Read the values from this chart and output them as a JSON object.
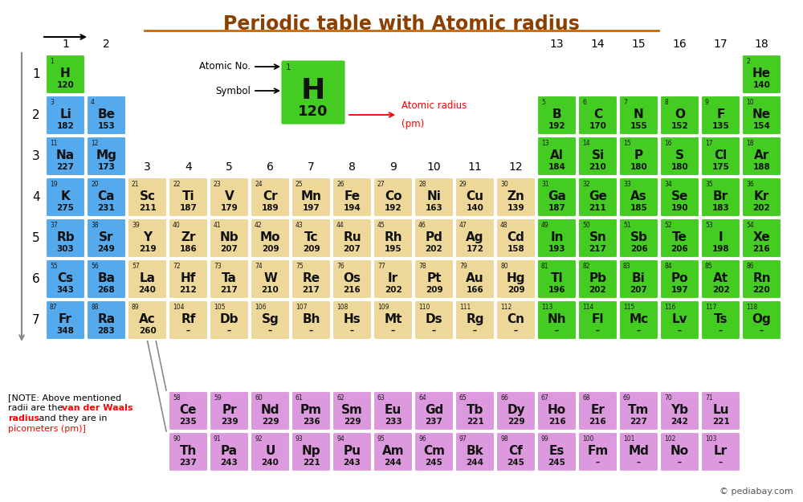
{
  "title": "Periodic table with Atomic radius",
  "title_color": "#8B4000",
  "title_underline_color": "#CC6600",
  "elements": [
    {
      "sym": "H",
      "num": 1,
      "r": 120,
      "row": 1,
      "col": 1,
      "color": "#44CC22"
    },
    {
      "sym": "He",
      "num": 2,
      "r": 140,
      "row": 1,
      "col": 18,
      "color": "#44CC22"
    },
    {
      "sym": "Li",
      "num": 3,
      "r": 182,
      "row": 2,
      "col": 1,
      "color": "#55AAEE"
    },
    {
      "sym": "Be",
      "num": 4,
      "r": 153,
      "row": 2,
      "col": 2,
      "color": "#55AAEE"
    },
    {
      "sym": "B",
      "num": 5,
      "r": 192,
      "row": 2,
      "col": 13,
      "color": "#44CC22"
    },
    {
      "sym": "C",
      "num": 6,
      "r": 170,
      "row": 2,
      "col": 14,
      "color": "#44CC22"
    },
    {
      "sym": "N",
      "num": 7,
      "r": 155,
      "row": 2,
      "col": 15,
      "color": "#44CC22"
    },
    {
      "sym": "O",
      "num": 8,
      "r": 152,
      "row": 2,
      "col": 16,
      "color": "#44CC22"
    },
    {
      "sym": "F",
      "num": 9,
      "r": 135,
      "row": 2,
      "col": 17,
      "color": "#44CC22"
    },
    {
      "sym": "Ne",
      "num": 10,
      "r": 154,
      "row": 2,
      "col": 18,
      "color": "#44CC22"
    },
    {
      "sym": "Na",
      "num": 11,
      "r": 227,
      "row": 3,
      "col": 1,
      "color": "#55AAEE"
    },
    {
      "sym": "Mg",
      "num": 12,
      "r": 173,
      "row": 3,
      "col": 2,
      "color": "#55AAEE"
    },
    {
      "sym": "Al",
      "num": 13,
      "r": 184,
      "row": 3,
      "col": 13,
      "color": "#44CC22"
    },
    {
      "sym": "Si",
      "num": 14,
      "r": 210,
      "row": 3,
      "col": 14,
      "color": "#44CC22"
    },
    {
      "sym": "P",
      "num": 15,
      "r": 180,
      "row": 3,
      "col": 15,
      "color": "#44CC22"
    },
    {
      "sym": "S",
      "num": 16,
      "r": 180,
      "row": 3,
      "col": 16,
      "color": "#44CC22"
    },
    {
      "sym": "Cl",
      "num": 17,
      "r": 175,
      "row": 3,
      "col": 17,
      "color": "#44CC22"
    },
    {
      "sym": "Ar",
      "num": 18,
      "r": 188,
      "row": 3,
      "col": 18,
      "color": "#44CC22"
    },
    {
      "sym": "K",
      "num": 19,
      "r": 275,
      "row": 4,
      "col": 1,
      "color": "#55AAEE"
    },
    {
      "sym": "Ca",
      "num": 20,
      "r": 231,
      "row": 4,
      "col": 2,
      "color": "#55AAEE"
    },
    {
      "sym": "Sc",
      "num": 21,
      "r": 211,
      "row": 4,
      "col": 3,
      "color": "#EDD89A"
    },
    {
      "sym": "Ti",
      "num": 22,
      "r": 187,
      "row": 4,
      "col": 4,
      "color": "#EDD89A"
    },
    {
      "sym": "V",
      "num": 23,
      "r": 179,
      "row": 4,
      "col": 5,
      "color": "#EDD89A"
    },
    {
      "sym": "Cr",
      "num": 24,
      "r": 189,
      "row": 4,
      "col": 6,
      "color": "#EDD89A"
    },
    {
      "sym": "Mn",
      "num": 25,
      "r": 197,
      "row": 4,
      "col": 7,
      "color": "#EDD89A"
    },
    {
      "sym": "Fe",
      "num": 26,
      "r": 194,
      "row": 4,
      "col": 8,
      "color": "#EDD89A"
    },
    {
      "sym": "Co",
      "num": 27,
      "r": 192,
      "row": 4,
      "col": 9,
      "color": "#EDD89A"
    },
    {
      "sym": "Ni",
      "num": 28,
      "r": 163,
      "row": 4,
      "col": 10,
      "color": "#EDD89A"
    },
    {
      "sym": "Cu",
      "num": 29,
      "r": 140,
      "row": 4,
      "col": 11,
      "color": "#EDD89A"
    },
    {
      "sym": "Zn",
      "num": 30,
      "r": 139,
      "row": 4,
      "col": 12,
      "color": "#EDD89A"
    },
    {
      "sym": "Ga",
      "num": 31,
      "r": 187,
      "row": 4,
      "col": 13,
      "color": "#44CC22"
    },
    {
      "sym": "Ge",
      "num": 32,
      "r": 211,
      "row": 4,
      "col": 14,
      "color": "#44CC22"
    },
    {
      "sym": "As",
      "num": 33,
      "r": 185,
      "row": 4,
      "col": 15,
      "color": "#44CC22"
    },
    {
      "sym": "Se",
      "num": 34,
      "r": 190,
      "row": 4,
      "col": 16,
      "color": "#44CC22"
    },
    {
      "sym": "Br",
      "num": 35,
      "r": 183,
      "row": 4,
      "col": 17,
      "color": "#44CC22"
    },
    {
      "sym": "Kr",
      "num": 36,
      "r": 202,
      "row": 4,
      "col": 18,
      "color": "#44CC22"
    },
    {
      "sym": "Rb",
      "num": 37,
      "r": 303,
      "row": 5,
      "col": 1,
      "color": "#55AAEE"
    },
    {
      "sym": "Sr",
      "num": 38,
      "r": 249,
      "row": 5,
      "col": 2,
      "color": "#55AAEE"
    },
    {
      "sym": "Y",
      "num": 39,
      "r": 219,
      "row": 5,
      "col": 3,
      "color": "#EDD89A"
    },
    {
      "sym": "Zr",
      "num": 40,
      "r": 186,
      "row": 5,
      "col": 4,
      "color": "#EDD89A"
    },
    {
      "sym": "Nb",
      "num": 41,
      "r": 207,
      "row": 5,
      "col": 5,
      "color": "#EDD89A"
    },
    {
      "sym": "Mo",
      "num": 42,
      "r": 209,
      "row": 5,
      "col": 6,
      "color": "#EDD89A"
    },
    {
      "sym": "Tc",
      "num": 43,
      "r": 209,
      "row": 5,
      "col": 7,
      "color": "#EDD89A"
    },
    {
      "sym": "Ru",
      "num": 44,
      "r": 207,
      "row": 5,
      "col": 8,
      "color": "#EDD89A"
    },
    {
      "sym": "Rh",
      "num": 45,
      "r": 195,
      "row": 5,
      "col": 9,
      "color": "#EDD89A"
    },
    {
      "sym": "Pd",
      "num": 46,
      "r": 202,
      "row": 5,
      "col": 10,
      "color": "#EDD89A"
    },
    {
      "sym": "Ag",
      "num": 47,
      "r": 172,
      "row": 5,
      "col": 11,
      "color": "#EDD89A"
    },
    {
      "sym": "Cd",
      "num": 48,
      "r": 158,
      "row": 5,
      "col": 12,
      "color": "#EDD89A"
    },
    {
      "sym": "In",
      "num": 49,
      "r": 193,
      "row": 5,
      "col": 13,
      "color": "#44CC22"
    },
    {
      "sym": "Sn",
      "num": 50,
      "r": 217,
      "row": 5,
      "col": 14,
      "color": "#44CC22"
    },
    {
      "sym": "Sb",
      "num": 51,
      "r": 206,
      "row": 5,
      "col": 15,
      "color": "#44CC22"
    },
    {
      "sym": "Te",
      "num": 52,
      "r": 206,
      "row": 5,
      "col": 16,
      "color": "#44CC22"
    },
    {
      "sym": "I",
      "num": 53,
      "r": 198,
      "row": 5,
      "col": 17,
      "color": "#44CC22"
    },
    {
      "sym": "Xe",
      "num": 54,
      "r": 216,
      "row": 5,
      "col": 18,
      "color": "#44CC22"
    },
    {
      "sym": "Cs",
      "num": 55,
      "r": 343,
      "row": 6,
      "col": 1,
      "color": "#55AAEE"
    },
    {
      "sym": "Ba",
      "num": 56,
      "r": 268,
      "row": 6,
      "col": 2,
      "color": "#55AAEE"
    },
    {
      "sym": "La",
      "num": 57,
      "r": 240,
      "row": 6,
      "col": 3,
      "color": "#EDD89A"
    },
    {
      "sym": "Hf",
      "num": 72,
      "r": 212,
      "row": 6,
      "col": 4,
      "color": "#EDD89A"
    },
    {
      "sym": "Ta",
      "num": 73,
      "r": 217,
      "row": 6,
      "col": 5,
      "color": "#EDD89A"
    },
    {
      "sym": "W",
      "num": 74,
      "r": 210,
      "row": 6,
      "col": 6,
      "color": "#EDD89A"
    },
    {
      "sym": "Re",
      "num": 75,
      "r": 217,
      "row": 6,
      "col": 7,
      "color": "#EDD89A"
    },
    {
      "sym": "Os",
      "num": 76,
      "r": 216,
      "row": 6,
      "col": 8,
      "color": "#EDD89A"
    },
    {
      "sym": "Ir",
      "num": 77,
      "r": 202,
      "row": 6,
      "col": 9,
      "color": "#EDD89A"
    },
    {
      "sym": "Pt",
      "num": 78,
      "r": 209,
      "row": 6,
      "col": 10,
      "color": "#EDD89A"
    },
    {
      "sym": "Au",
      "num": 79,
      "r": 166,
      "row": 6,
      "col": 11,
      "color": "#EDD89A"
    },
    {
      "sym": "Hg",
      "num": 80,
      "r": 209,
      "row": 6,
      "col": 12,
      "color": "#EDD89A"
    },
    {
      "sym": "Tl",
      "num": 81,
      "r": 196,
      "row": 6,
      "col": 13,
      "color": "#44CC22"
    },
    {
      "sym": "Pb",
      "num": 82,
      "r": 202,
      "row": 6,
      "col": 14,
      "color": "#44CC22"
    },
    {
      "sym": "Bi",
      "num": 83,
      "r": 207,
      "row": 6,
      "col": 15,
      "color": "#44CC22"
    },
    {
      "sym": "Po",
      "num": 84,
      "r": 197,
      "row": 6,
      "col": 16,
      "color": "#44CC22"
    },
    {
      "sym": "At",
      "num": 85,
      "r": 202,
      "row": 6,
      "col": 17,
      "color": "#44CC22"
    },
    {
      "sym": "Rn",
      "num": 86,
      "r": 220,
      "row": 6,
      "col": 18,
      "color": "#44CC22"
    },
    {
      "sym": "Fr",
      "num": 87,
      "r": 348,
      "row": 7,
      "col": 1,
      "color": "#55AAEE"
    },
    {
      "sym": "Ra",
      "num": 88,
      "r": 283,
      "row": 7,
      "col": 2,
      "color": "#55AAEE"
    },
    {
      "sym": "Ac",
      "num": 89,
      "r": 260,
      "row": 7,
      "col": 3,
      "color": "#EDD89A"
    },
    {
      "sym": "Rf",
      "num": 104,
      "r": null,
      "row": 7,
      "col": 4,
      "color": "#EDD89A"
    },
    {
      "sym": "Db",
      "num": 105,
      "r": null,
      "row": 7,
      "col": 5,
      "color": "#EDD89A"
    },
    {
      "sym": "Sg",
      "num": 106,
      "r": null,
      "row": 7,
      "col": 6,
      "color": "#EDD89A"
    },
    {
      "sym": "Bh",
      "num": 107,
      "r": null,
      "row": 7,
      "col": 7,
      "color": "#EDD89A"
    },
    {
      "sym": "Hs",
      "num": 108,
      "r": null,
      "row": 7,
      "col": 8,
      "color": "#EDD89A"
    },
    {
      "sym": "Mt",
      "num": 109,
      "r": null,
      "row": 7,
      "col": 9,
      "color": "#EDD89A"
    },
    {
      "sym": "Ds",
      "num": 110,
      "r": null,
      "row": 7,
      "col": 10,
      "color": "#EDD89A"
    },
    {
      "sym": "Rg",
      "num": 111,
      "r": null,
      "row": 7,
      "col": 11,
      "color": "#EDD89A"
    },
    {
      "sym": "Cn",
      "num": 112,
      "r": null,
      "row": 7,
      "col": 12,
      "color": "#EDD89A"
    },
    {
      "sym": "Nh",
      "num": 113,
      "r": null,
      "row": 7,
      "col": 13,
      "color": "#44CC22"
    },
    {
      "sym": "Fl",
      "num": 114,
      "r": null,
      "row": 7,
      "col": 14,
      "color": "#44CC22"
    },
    {
      "sym": "Mc",
      "num": 115,
      "r": null,
      "row": 7,
      "col": 15,
      "color": "#44CC22"
    },
    {
      "sym": "Lv",
      "num": 116,
      "r": null,
      "row": 7,
      "col": 16,
      "color": "#44CC22"
    },
    {
      "sym": "Ts",
      "num": 117,
      "r": null,
      "row": 7,
      "col": 17,
      "color": "#44CC22"
    },
    {
      "sym": "Og",
      "num": 118,
      "r": null,
      "row": 7,
      "col": 18,
      "color": "#44CC22"
    },
    {
      "sym": "Ce",
      "num": 58,
      "r": 235,
      "frow": 1,
      "fcol": 1,
      "color": "#DD99DD"
    },
    {
      "sym": "Pr",
      "num": 59,
      "r": 239,
      "frow": 1,
      "fcol": 2,
      "color": "#DD99DD"
    },
    {
      "sym": "Nd",
      "num": 60,
      "r": 229,
      "frow": 1,
      "fcol": 3,
      "color": "#DD99DD"
    },
    {
      "sym": "Pm",
      "num": 61,
      "r": 236,
      "frow": 1,
      "fcol": 4,
      "color": "#DD99DD"
    },
    {
      "sym": "Sm",
      "num": 62,
      "r": 229,
      "frow": 1,
      "fcol": 5,
      "color": "#DD99DD"
    },
    {
      "sym": "Eu",
      "num": 63,
      "r": 233,
      "frow": 1,
      "fcol": 6,
      "color": "#DD99DD"
    },
    {
      "sym": "Gd",
      "num": 64,
      "r": 237,
      "frow": 1,
      "fcol": 7,
      "color": "#DD99DD"
    },
    {
      "sym": "Tb",
      "num": 65,
      "r": 221,
      "frow": 1,
      "fcol": 8,
      "color": "#DD99DD"
    },
    {
      "sym": "Dy",
      "num": 66,
      "r": 229,
      "frow": 1,
      "fcol": 9,
      "color": "#DD99DD"
    },
    {
      "sym": "Ho",
      "num": 67,
      "r": 216,
      "frow": 1,
      "fcol": 10,
      "color": "#DD99DD"
    },
    {
      "sym": "Er",
      "num": 68,
      "r": 216,
      "frow": 1,
      "fcol": 11,
      "color": "#DD99DD"
    },
    {
      "sym": "Tm",
      "num": 69,
      "r": 227,
      "frow": 1,
      "fcol": 12,
      "color": "#DD99DD"
    },
    {
      "sym": "Yb",
      "num": 70,
      "r": 242,
      "frow": 1,
      "fcol": 13,
      "color": "#DD99DD"
    },
    {
      "sym": "Lu",
      "num": 71,
      "r": 221,
      "frow": 1,
      "fcol": 14,
      "color": "#DD99DD"
    },
    {
      "sym": "Th",
      "num": 90,
      "r": 237,
      "frow": 2,
      "fcol": 1,
      "color": "#DD99DD"
    },
    {
      "sym": "Pa",
      "num": 91,
      "r": 243,
      "frow": 2,
      "fcol": 2,
      "color": "#DD99DD"
    },
    {
      "sym": "U",
      "num": 92,
      "r": 240,
      "frow": 2,
      "fcol": 3,
      "color": "#DD99DD"
    },
    {
      "sym": "Np",
      "num": 93,
      "r": 221,
      "frow": 2,
      "fcol": 4,
      "color": "#DD99DD"
    },
    {
      "sym": "Pu",
      "num": 94,
      "r": 243,
      "frow": 2,
      "fcol": 5,
      "color": "#DD99DD"
    },
    {
      "sym": "Am",
      "num": 95,
      "r": 244,
      "frow": 2,
      "fcol": 6,
      "color": "#DD99DD"
    },
    {
      "sym": "Cm",
      "num": 96,
      "r": 245,
      "frow": 2,
      "fcol": 7,
      "color": "#DD99DD"
    },
    {
      "sym": "Bk",
      "num": 97,
      "r": 244,
      "frow": 2,
      "fcol": 8,
      "color": "#DD99DD"
    },
    {
      "sym": "Cf",
      "num": 98,
      "r": 245,
      "frow": 2,
      "fcol": 9,
      "color": "#DD99DD"
    },
    {
      "sym": "Es",
      "num": 99,
      "r": 245,
      "frow": 2,
      "fcol": 10,
      "color": "#DD99DD"
    },
    {
      "sym": "Fm",
      "num": 100,
      "r": null,
      "frow": 2,
      "fcol": 11,
      "color": "#DD99DD"
    },
    {
      "sym": "Md",
      "num": 101,
      "r": null,
      "frow": 2,
      "fcol": 12,
      "color": "#DD99DD"
    },
    {
      "sym": "No",
      "num": 102,
      "r": null,
      "frow": 2,
      "fcol": 13,
      "color": "#DD99DD"
    },
    {
      "sym": "Lr",
      "num": 103,
      "r": null,
      "frow": 2,
      "fcol": 14,
      "color": "#DD99DD"
    }
  ]
}
